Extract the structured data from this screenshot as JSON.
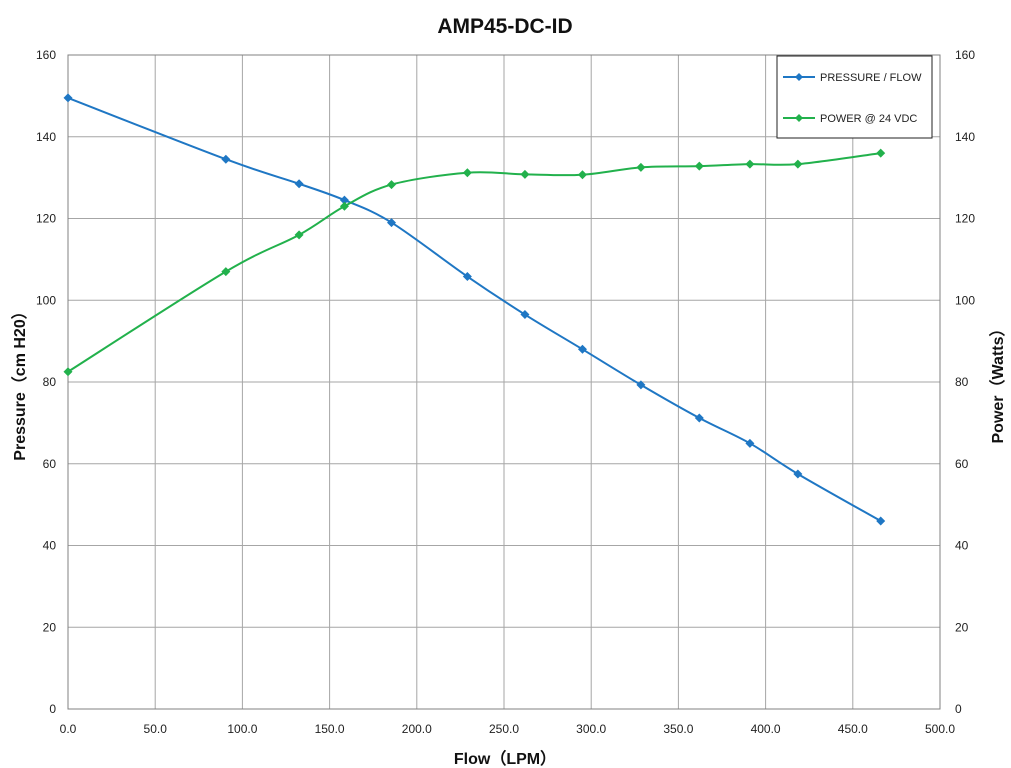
{
  "chart_data": {
    "type": "line",
    "title": "AMP45-DC-ID",
    "xlabel": "Flow（LPM）",
    "ylabel": "Pressure（cm H20）",
    "y2label": "Power（Watts）",
    "xlim": [
      0,
      500
    ],
    "ylim": [
      0,
      160
    ],
    "y2lim": [
      0,
      160
    ],
    "x_ticks": [
      "0.0",
      "50.0",
      "100.0",
      "150.0",
      "200.0",
      "250.0",
      "300.0",
      "350.0",
      "400.0",
      "450.0",
      "500.0"
    ],
    "y_ticks": [
      "0",
      "20",
      "40",
      "60",
      "80",
      "100",
      "120",
      "140",
      "160"
    ],
    "y2_ticks": [
      "0",
      "20",
      "40",
      "60",
      "80",
      "100",
      "120",
      "140",
      "160"
    ],
    "grid": true,
    "legend_position": "top-right",
    "series": [
      {
        "name": "PRESSURE / FLOW",
        "color": "#1f77c4",
        "marker": "diamond",
        "axis": "left",
        "x": [
          0,
          90.5,
          132.5,
          158.5,
          185.5,
          229,
          262,
          295,
          328.5,
          362,
          391,
          418.5,
          466
        ],
        "y": [
          149.5,
          134.5,
          128.5,
          124.5,
          119,
          105.8,
          96.5,
          88,
          79.3,
          71.2,
          65,
          57.5,
          46
        ]
      },
      {
        "name": "POWER @ 24 VDC",
        "color": "#22b14c",
        "marker": "diamond",
        "axis": "right",
        "x": [
          0,
          90.5,
          132.5,
          158.5,
          185.5,
          229,
          262,
          295,
          328.5,
          362,
          391,
          418.5,
          466
        ],
        "y": [
          82.5,
          107,
          116,
          123,
          128.3,
          131.2,
          130.8,
          130.7,
          132.5,
          132.8,
          133.3,
          133.3,
          136
        ]
      }
    ]
  }
}
